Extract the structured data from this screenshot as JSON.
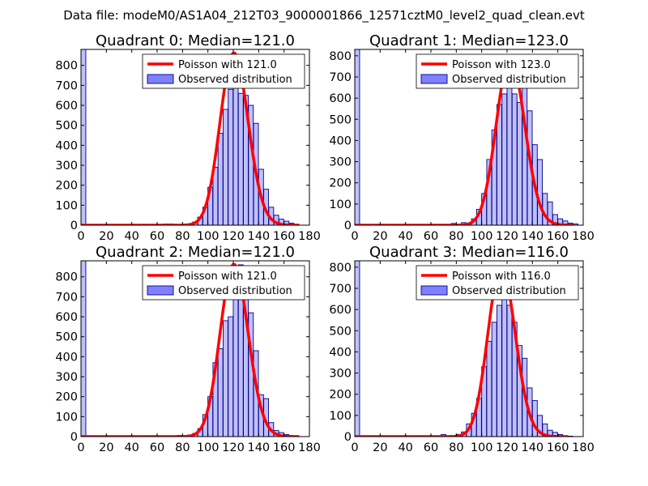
{
  "figure": {
    "suptitle": "Data file: modeM0/AS1A04_212T03_9000001866_12571cztM0_level2_quad_clean.evt",
    "colors": {
      "bar_fill": "#8080ff",
      "bar_edge": "#000080",
      "poisson": "#ff0000",
      "axes": "#000000",
      "background": "#ffffff"
    }
  },
  "chart_data": [
    {
      "type": "bar",
      "title": "Quadrant 0: Median=121.0",
      "xlim": [
        0,
        180
      ],
      "ylim": [
        0,
        880
      ],
      "xticks": [
        "0",
        "20",
        "40",
        "60",
        "80",
        "100",
        "120",
        "140",
        "160",
        "180"
      ],
      "yticks": [
        "0",
        "100",
        "200",
        "300",
        "400",
        "500",
        "600",
        "700",
        "800"
      ],
      "bin_width": 3.8,
      "legend": {
        "line_label": "Poisson with 121.0",
        "bar_label": "Observed distribution",
        "placement": "upper right"
      },
      "poisson": {
        "mean": 121.0,
        "peak": 862,
        "x_start": 0,
        "x_end": 172
      },
      "bins": [
        [
          0,
          880
        ],
        [
          65,
          6
        ],
        [
          69,
          6
        ],
        [
          80,
          4
        ],
        [
          88,
          16
        ],
        [
          92,
          40
        ],
        [
          96,
          90
        ],
        [
          100,
          190
        ],
        [
          104,
          290
        ],
        [
          108,
          460
        ],
        [
          112,
          580
        ],
        [
          116,
          680
        ],
        [
          120,
          840
        ],
        [
          124,
          660
        ],
        [
          128,
          650
        ],
        [
          132,
          600
        ],
        [
          136,
          510
        ],
        [
          140,
          280
        ],
        [
          144,
          180
        ],
        [
          148,
          90
        ],
        [
          152,
          50
        ],
        [
          156,
          30
        ],
        [
          160,
          20
        ],
        [
          164,
          10
        ],
        [
          168,
          4
        ]
      ]
    },
    {
      "type": "bar",
      "title": "Quadrant 1: Median=123.0",
      "xlim": [
        0,
        180
      ],
      "ylim": [
        0,
        830
      ],
      "xticks": [
        "0",
        "20",
        "40",
        "60",
        "80",
        "100",
        "120",
        "140",
        "160",
        "180"
      ],
      "yticks": [
        "0",
        "100",
        "200",
        "300",
        "400",
        "500",
        "600",
        "700",
        "800"
      ],
      "bin_width": 3.8,
      "legend": {
        "line_label": "Poisson with 123.0",
        "bar_label": "Observed distribution",
        "placement": "upper right"
      },
      "poisson": {
        "mean": 123.0,
        "peak": 795,
        "x_start": 0,
        "x_end": 172
      },
      "bins": [
        [
          0,
          830
        ],
        [
          76,
          8
        ],
        [
          84,
          12
        ],
        [
          92,
          30
        ],
        [
          96,
          75
        ],
        [
          100,
          150
        ],
        [
          104,
          310
        ],
        [
          108,
          450
        ],
        [
          112,
          570
        ],
        [
          116,
          620
        ],
        [
          120,
          760
        ],
        [
          124,
          620
        ],
        [
          128,
          580
        ],
        [
          132,
          650
        ],
        [
          136,
          540
        ],
        [
          140,
          380
        ],
        [
          144,
          310
        ],
        [
          148,
          150
        ],
        [
          152,
          110
        ],
        [
          156,
          50
        ],
        [
          160,
          30
        ],
        [
          164,
          20
        ],
        [
          168,
          10
        ],
        [
          172,
          6
        ]
      ]
    },
    {
      "type": "bar",
      "title": "Quadrant 2: Median=121.0",
      "xlim": [
        0,
        180
      ],
      "ylim": [
        0,
        880
      ],
      "xticks": [
        "0",
        "20",
        "40",
        "60",
        "80",
        "100",
        "120",
        "140",
        "160",
        "180"
      ],
      "yticks": [
        "0",
        "100",
        "200",
        "300",
        "400",
        "500",
        "600",
        "700",
        "800"
      ],
      "bin_width": 3.8,
      "legend": {
        "line_label": "Poisson with 121.0",
        "bar_label": "Observed distribution",
        "placement": "upper right"
      },
      "poisson": {
        "mean": 121.0,
        "peak": 862,
        "x_start": 0,
        "x_end": 172
      },
      "bins": [
        [
          0,
          880
        ],
        [
          68,
          4
        ],
        [
          76,
          6
        ],
        [
          84,
          8
        ],
        [
          88,
          16
        ],
        [
          92,
          40
        ],
        [
          96,
          110
        ],
        [
          100,
          200
        ],
        [
          104,
          370
        ],
        [
          108,
          440
        ],
        [
          112,
          580
        ],
        [
          116,
          600
        ],
        [
          120,
          840
        ],
        [
          124,
          860
        ],
        [
          128,
          760
        ],
        [
          132,
          620
        ],
        [
          136,
          430
        ],
        [
          140,
          210
        ],
        [
          144,
          190
        ],
        [
          148,
          70
        ],
        [
          152,
          30
        ],
        [
          156,
          20
        ],
        [
          160,
          10
        ],
        [
          164,
          4
        ]
      ]
    },
    {
      "type": "bar",
      "title": "Quadrant 3: Median=116.0",
      "xlim": [
        0,
        180
      ],
      "ylim": [
        0,
        830
      ],
      "xticks": [
        "0",
        "20",
        "40",
        "60",
        "80",
        "100",
        "120",
        "140",
        "160",
        "180"
      ],
      "yticks": [
        "0",
        "100",
        "200",
        "300",
        "400",
        "500",
        "600",
        "700",
        "800"
      ],
      "bin_width": 3.8,
      "legend": {
        "line_label": "Poisson with 116.0",
        "bar_label": "Observed distribution",
        "placement": "upper right"
      },
      "poisson": {
        "mean": 116.0,
        "peak": 802,
        "x_start": 0,
        "x_end": 168
      },
      "bins": [
        [
          0,
          830
        ],
        [
          68,
          10
        ],
        [
          72,
          4
        ],
        [
          80,
          10
        ],
        [
          84,
          22
        ],
        [
          88,
          60
        ],
        [
          92,
          110
        ],
        [
          96,
          180
        ],
        [
          100,
          330
        ],
        [
          104,
          450
        ],
        [
          108,
          540
        ],
        [
          112,
          620
        ],
        [
          116,
          780
        ],
        [
          120,
          620
        ],
        [
          124,
          540
        ],
        [
          128,
          430
        ],
        [
          132,
          370
        ],
        [
          136,
          230
        ],
        [
          140,
          170
        ],
        [
          144,
          100
        ],
        [
          148,
          60
        ],
        [
          152,
          30
        ],
        [
          156,
          20
        ],
        [
          160,
          10
        ],
        [
          164,
          4
        ],
        [
          168,
          2
        ]
      ]
    }
  ]
}
